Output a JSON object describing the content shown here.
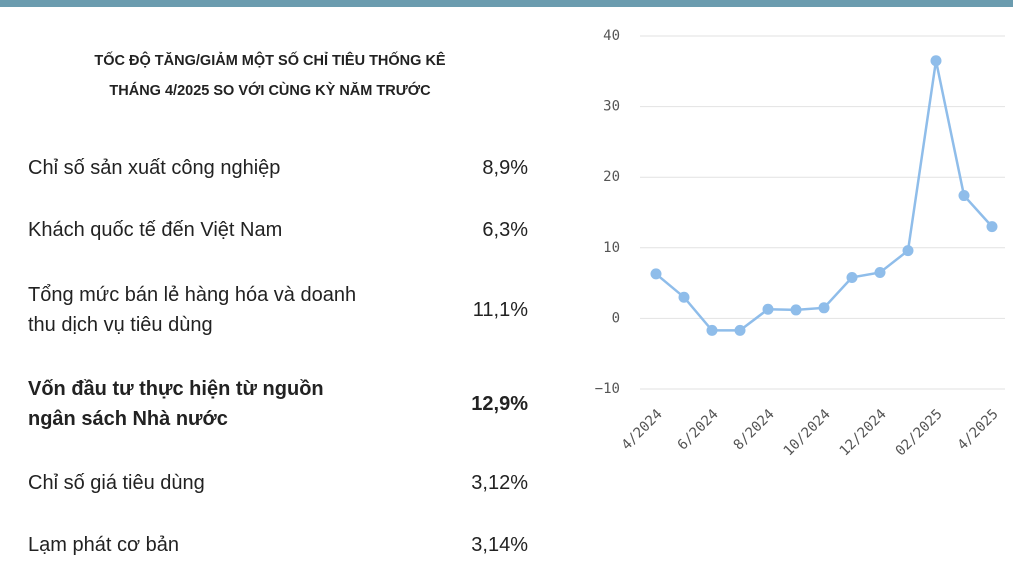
{
  "header": {
    "title_lines": [
      "TỐC ĐỘ TĂNG/GIẢM MỘT SỐ CHỈ TIÊU THỐNG KÊ",
      "THÁNG 4/2025 SO VỚI CÙNG KỲ NĂM TRƯỚC"
    ]
  },
  "table": {
    "rows": [
      {
        "label": "Chỉ số sản xuất công nghiệp",
        "value": "8,9%"
      },
      {
        "label": "Khách quốc tế đến Việt Nam",
        "value": "6,3%"
      },
      {
        "label": "Tổng mức bán lẻ hàng hóa và doanh thu dịch vụ tiêu dùng",
        "value": "11,1%"
      },
      {
        "label": "Vốn đầu tư thực hiện từ nguồn ngân sách Nhà nước",
        "value": "12,9%",
        "bold": true
      },
      {
        "label": "Chỉ số giá tiêu dùng",
        "value": "3,12%"
      },
      {
        "label": "Lạm phát cơ bản",
        "value": "3,14%"
      }
    ]
  },
  "chart_data": {
    "type": "line",
    "categories": [
      "4/2024",
      null,
      "6/2024",
      null,
      "8/2024",
      null,
      "10/2024",
      null,
      "12/2024",
      null,
      "02/2025",
      null,
      "4/2025"
    ],
    "values": [
      6.3,
      3.0,
      -1.7,
      -1.7,
      1.3,
      1.2,
      1.5,
      5.8,
      6.5,
      9.6,
      36.5,
      17.4,
      13.0
    ],
    "color": "#8fbdea",
    "ylim": [
      -10,
      40
    ],
    "yticks": [
      {
        "value": -10,
        "label": "−10"
      },
      0,
      10,
      20,
      30,
      40
    ],
    "grid": true
  }
}
